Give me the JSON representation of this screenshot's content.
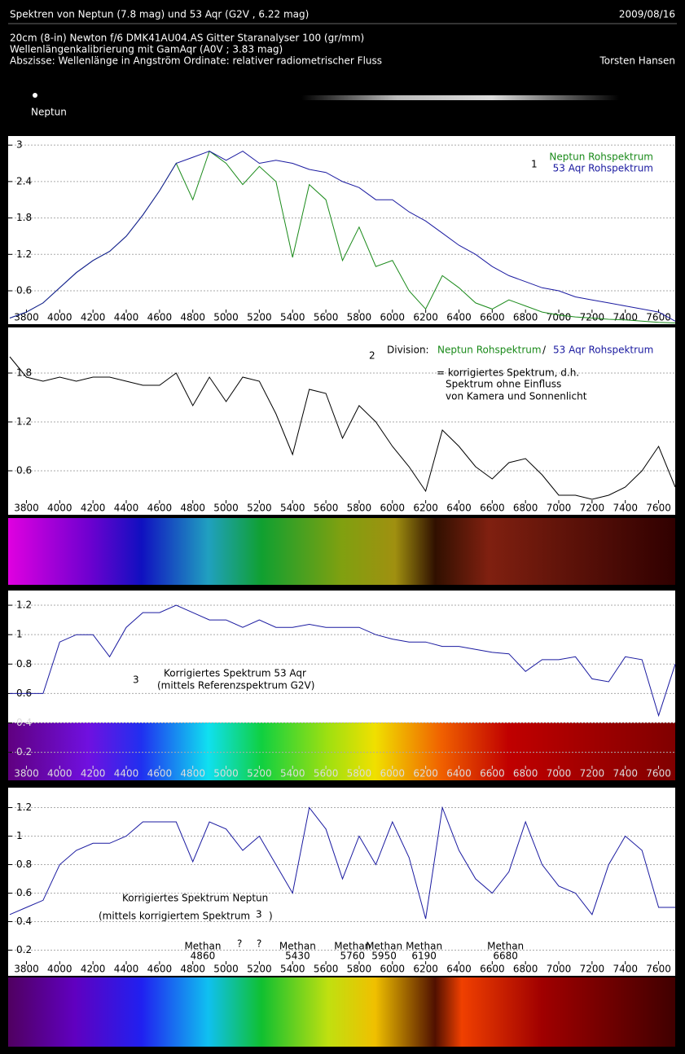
{
  "header": {
    "title": "Spektren von Neptun (7.8 mag) und 53 Aqr (G2V , 6.22 mag)",
    "date": "2009/08/16",
    "lines": [
      "20cm (8-in) Newton f/6   DMK41AU04.AS   Gitter Staranalyser 100 (gr/mm)",
      "Wellenlängenkalibrierung mit GamAqr (A0V ; 3.83 mag)",
      "Abszisse: Wellenlänge in Angström   Ordinate: relativer radiometrischer Fluss"
    ],
    "author": "Torsten Hansen",
    "image_label": "Neptun"
  },
  "chart_data": [
    {
      "type": "line",
      "x": [
        3700,
        3800,
        3900,
        4000,
        4100,
        4200,
        4300,
        4400,
        4500,
        4600,
        4700,
        4800,
        4900,
        5000,
        5100,
        5200,
        5300,
        5400,
        5500,
        5600,
        5700,
        5800,
        5900,
        6000,
        6100,
        6200,
        6300,
        6400,
        6500,
        6600,
        6700,
        6800,
        6900,
        7000,
        7100,
        7200,
        7300,
        7400,
        7500,
        7600,
        7700
      ],
      "series": [
        {
          "name": "Neptun Rohspektrum",
          "color": "#1a8a1a",
          "values": [
            0.15,
            0.25,
            0.4,
            0.65,
            0.9,
            1.1,
            1.25,
            1.5,
            1.85,
            2.25,
            2.7,
            2.1,
            2.9,
            2.7,
            2.35,
            2.65,
            2.4,
            1.15,
            2.35,
            2.1,
            1.1,
            1.65,
            1.0,
            1.1,
            0.6,
            0.3,
            0.85,
            0.65,
            0.4,
            0.3,
            0.45,
            0.35,
            0.25,
            0.2,
            0.17,
            0.15,
            0.13,
            0.12,
            0.1,
            0.08,
            0.07
          ]
        },
        {
          "name": "53 Aqr Rohspektrum",
          "color": "#1a1aa0",
          "values": [
            0.15,
            0.25,
            0.4,
            0.65,
            0.9,
            1.1,
            1.25,
            1.5,
            1.85,
            2.25,
            2.7,
            2.8,
            2.9,
            2.75,
            2.9,
            2.7,
            2.75,
            2.7,
            2.6,
            2.55,
            2.4,
            2.3,
            2.1,
            2.1,
            1.9,
            1.75,
            1.55,
            1.35,
            1.2,
            1.0,
            0.85,
            0.75,
            0.65,
            0.6,
            0.5,
            0.45,
            0.4,
            0.35,
            0.3,
            0.25,
            0.1
          ]
        }
      ],
      "xlim": [
        3690,
        7700
      ],
      "ylim": [
        0.05,
        3.15
      ],
      "xticks": [
        3800,
        4000,
        4200,
        4400,
        4600,
        4800,
        5000,
        5200,
        5400,
        5600,
        5800,
        6000,
        6200,
        6400,
        6600,
        6800,
        7000,
        7200,
        7400,
        7600
      ],
      "yticks": [
        0.6,
        1.2,
        1.8,
        2.4,
        3
      ],
      "grid": true,
      "annotations": [
        "1"
      ]
    },
    {
      "type": "line",
      "x": [
        3700,
        3800,
        3900,
        4000,
        4100,
        4200,
        4300,
        4400,
        4500,
        4600,
        4700,
        4800,
        4900,
        5000,
        5100,
        5200,
        5300,
        5400,
        5500,
        5600,
        5700,
        5800,
        5900,
        6000,
        6100,
        6200,
        6300,
        6400,
        6500,
        6600,
        6700,
        6800,
        6900,
        7000,
        7100,
        7200,
        7300,
        7400,
        7500,
        7600,
        7700
      ],
      "values": [
        2.0,
        1.75,
        1.7,
        1.75,
        1.7,
        1.75,
        1.75,
        1.7,
        1.65,
        1.65,
        1.8,
        1.4,
        1.75,
        1.45,
        1.75,
        1.7,
        1.3,
        0.8,
        1.6,
        1.55,
        1.0,
        1.4,
        1.2,
        0.9,
        0.65,
        0.35,
        1.1,
        0.9,
        0.65,
        0.5,
        0.7,
        0.75,
        0.55,
        0.3,
        0.3,
        0.25,
        0.3,
        0.4,
        0.6,
        0.9,
        0.4
      ],
      "color": "#000000",
      "xlim": [
        3690,
        7700
      ],
      "ylim": [
        0.06,
        2.36
      ],
      "xticks": [
        3800,
        4000,
        4200,
        4400,
        4600,
        4800,
        5000,
        5200,
        5400,
        5600,
        5800,
        6000,
        6200,
        6400,
        6600,
        6800,
        7000,
        7200,
        7400,
        7600
      ],
      "yticks": [
        0.6,
        1.2,
        1.8
      ],
      "grid": true,
      "annotations": [
        "2",
        "Division:",
        "Neptun Rohspektrum",
        "/",
        "53 Aqr Rohspektrum",
        "= korrigiertes Spektrum, d.h.",
        "Spektrum ohne Einfluss",
        "von Kamera und Sonnenlicht"
      ]
    },
    {
      "type": "line",
      "x": [
        3700,
        3800,
        3900,
        4000,
        4100,
        4200,
        4300,
        4400,
        4500,
        4600,
        4700,
        4800,
        4900,
        5000,
        5100,
        5200,
        5300,
        5400,
        5500,
        5600,
        5700,
        5800,
        5900,
        6000,
        6100,
        6200,
        6300,
        6400,
        6500,
        6600,
        6700,
        6800,
        6900,
        7000,
        7100,
        7200,
        7300,
        7400,
        7500,
        7600,
        7700
      ],
      "values": [
        0.6,
        0.6,
        0.6,
        0.95,
        1.0,
        1.0,
        0.85,
        1.05,
        1.15,
        1.15,
        1.2,
        1.15,
        1.1,
        1.1,
        1.05,
        1.1,
        1.05,
        1.05,
        1.07,
        1.05,
        1.05,
        1.05,
        1.0,
        0.97,
        0.95,
        0.95,
        0.92,
        0.92,
        0.9,
        0.88,
        0.87,
        0.75,
        0.83,
        0.83,
        0.85,
        0.7,
        0.68,
        0.85,
        0.83,
        0.45,
        0.8
      ],
      "color": "#1a1aa0",
      "xlim": [
        3690,
        7700
      ],
      "ylim": [
        0.01,
        1.3
      ],
      "xticks": [
        3800,
        4000,
        4200,
        4400,
        4600,
        4800,
        5000,
        5200,
        5400,
        5600,
        5800,
        6000,
        6200,
        6400,
        6600,
        6800,
        7000,
        7200,
        7400,
        7600
      ],
      "yticks": [
        0.2,
        0.4,
        0.6,
        0.8,
        1,
        1.2
      ],
      "grid": true,
      "annotations": [
        "3",
        "Korrigiertes Spektrum  53 Aqr",
        "(mittels Referenzspektrum G2V)"
      ]
    },
    {
      "type": "line",
      "x": [
        3700,
        3800,
        3900,
        4000,
        4100,
        4200,
        4300,
        4400,
        4500,
        4600,
        4700,
        4800,
        4900,
        5000,
        5100,
        5200,
        5300,
        5400,
        5500,
        5600,
        5700,
        5800,
        5900,
        6000,
        6100,
        6200,
        6300,
        6400,
        6500,
        6600,
        6700,
        6800,
        6900,
        7000,
        7100,
        7200,
        7300,
        7400,
        7500,
        7600,
        7700
      ],
      "values": [
        0.45,
        0.5,
        0.55,
        0.8,
        0.9,
        0.95,
        0.95,
        1.0,
        1.1,
        1.1,
        1.1,
        0.82,
        1.1,
        1.05,
        0.9,
        1.0,
        0.8,
        0.6,
        1.2,
        1.05,
        0.7,
        1.0,
        0.8,
        1.1,
        0.85,
        0.42,
        1.2,
        0.9,
        0.7,
        0.6,
        0.75,
        1.1,
        0.8,
        0.65,
        0.6,
        0.45,
        0.8,
        1.0,
        0.9,
        0.5,
        0.5
      ],
      "color": "#1a1aa0",
      "xlim": [
        3690,
        7700
      ],
      "ylim": [
        0.02,
        1.34
      ],
      "xticks": [
        3800,
        4000,
        4200,
        4400,
        4600,
        4800,
        5000,
        5200,
        5400,
        5600,
        5800,
        6000,
        6200,
        6400,
        6600,
        6800,
        7000,
        7200,
        7400,
        7600
      ],
      "yticks": [
        0.2,
        0.4,
        0.6,
        0.8,
        1,
        1.2
      ],
      "grid": true,
      "annotations": [
        "Korrigiertes Spektrum  Neptun",
        "(mittels korrigiertem Spektrum",
        "3",
        ")",
        "?",
        "?"
      ],
      "features": [
        {
          "label": "Methan",
          "wavelength": 4860
        },
        {
          "label": "Methan",
          "wavelength": 5430
        },
        {
          "label": "Methan",
          "wavelength": 5760
        },
        {
          "label": "Methan",
          "wavelength": 5950
        },
        {
          "label": "Methan",
          "wavelength": 6190
        },
        {
          "label": "Methan",
          "wavelength": 6680
        }
      ]
    }
  ]
}
